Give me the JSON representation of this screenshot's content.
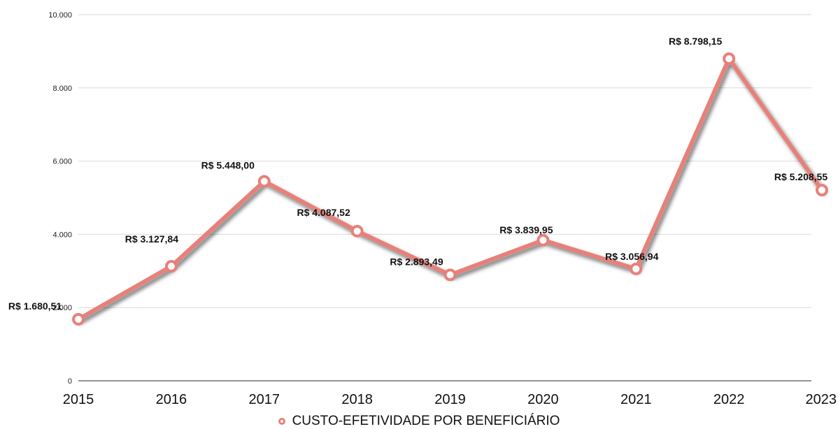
{
  "chart_data": {
    "type": "line",
    "categories": [
      "2015",
      "2016",
      "2017",
      "2018",
      "2019",
      "2020",
      "2021",
      "2022",
      "2023"
    ],
    "series": [
      {
        "name": "CUSTO-EFETIVIDADE POR BENEFICIÁRIO",
        "values": [
          1680.51,
          3127.84,
          5448.0,
          4087.52,
          2893.49,
          3839.95,
          3056.94,
          8798.15,
          5208.55
        ],
        "labels": [
          "R$ 1.680,51",
          "R$ 3.127,84",
          "R$ 5.448,00",
          "R$ 4.087,52",
          "R$ 2.893,49",
          "R$ 3.839,95",
          "R$ 3.056,94",
          "R$ 8.798,15",
          "R$ 5.208,55"
        ],
        "color": "#e8807a"
      }
    ],
    "yticks": [
      0,
      2000,
      4000,
      6000,
      8000,
      10000
    ],
    "ytick_labels": [
      "0",
      "2.000",
      "4.000",
      "6.000",
      "8.000",
      "10.000"
    ],
    "ylim": [
      0,
      10000
    ],
    "grid": true,
    "legend_position": "bottom"
  }
}
